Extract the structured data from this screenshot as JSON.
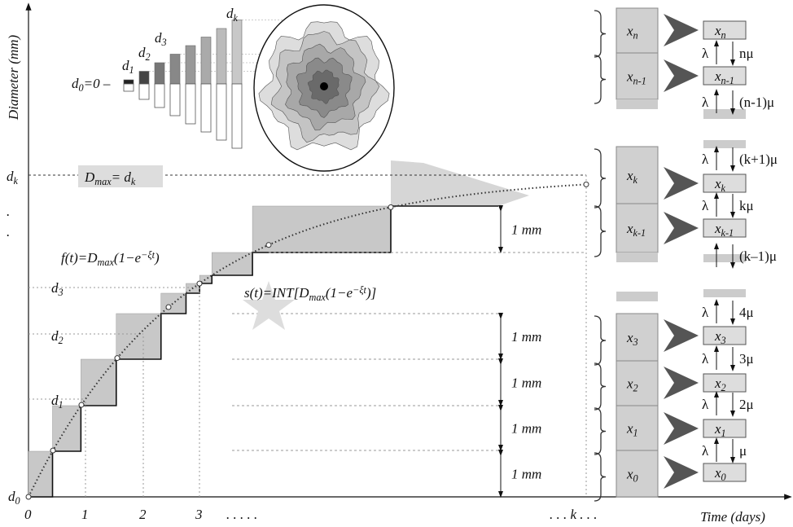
{
  "y_axis_label": "Diameter (mm)",
  "x_axis_label": "Time (days)",
  "x_ticks": [
    "0",
    "1",
    "2",
    "3",
    ". . . . .",
    ". . . k . . ."
  ],
  "y_ticks": [
    [
      {
        "text": "d"
      },
      {
        "sub": "0"
      }
    ],
    [
      {
        "text": "d"
      },
      {
        "sub": "1"
      }
    ],
    [
      {
        "text": "d"
      },
      {
        "sub": "2"
      }
    ],
    [
      {
        "text": "d"
      },
      {
        "sub": "3"
      }
    ],
    [
      {
        "text": "."
      }
    ],
    [
      {
        "text": "."
      }
    ],
    [
      {
        "text": "d"
      },
      {
        "sub": "k"
      }
    ]
  ],
  "dmax_label": [
    {
      "text": "D"
    },
    {
      "sub": "max"
    },
    {
      "text": "= d"
    },
    {
      "sub": "k"
    }
  ],
  "f_formula": [
    {
      "text": "f(t)=D"
    },
    {
      "sub": "max"
    },
    {
      "text": "(1−e"
    },
    {
      "sup": "−ξt"
    },
    {
      "text": ")"
    }
  ],
  "s_formula": [
    {
      "text": "s(t)=INT[D"
    },
    {
      "sub": "max"
    },
    {
      "text": "(1−e"
    },
    {
      "sup": "−ξt"
    },
    {
      "text": ")]"
    }
  ],
  "step_labels": [
    "1 mm",
    "1 mm",
    "1 mm",
    "1 mm",
    "1 mm"
  ],
  "inset": {
    "d0_label": [
      {
        "text": "d"
      },
      {
        "sub": "0"
      },
      {
        "text": "=0 –"
      }
    ],
    "bar_labels": [
      [
        {
          "text": "d"
        },
        {
          "sub": "1"
        }
      ],
      [
        {
          "text": "d"
        },
        {
          "sub": "2"
        }
      ],
      [
        {
          "text": "d"
        },
        {
          "sub": "3"
        }
      ],
      [
        {
          "text": "d"
        },
        {
          "sub": "k"
        }
      ]
    ]
  },
  "states": [
    [
      {
        "text": "x"
      },
      {
        "sub": "n"
      }
    ],
    [
      {
        "text": "x"
      },
      {
        "sub": "n-1"
      }
    ],
    [
      {
        "text": "x"
      },
      {
        "sub": "k"
      }
    ],
    [
      {
        "text": "x"
      },
      {
        "sub": "k-1"
      }
    ],
    [
      {
        "text": "x"
      },
      {
        "sub": "3"
      }
    ],
    [
      {
        "text": "x"
      },
      {
        "sub": "2"
      }
    ],
    [
      {
        "text": "x"
      },
      {
        "sub": "1"
      }
    ],
    [
      {
        "text": "x"
      },
      {
        "sub": "0"
      }
    ]
  ],
  "transitions": [
    {
      "up": "λ",
      "down": "nμ"
    },
    {
      "up": "λ",
      "down": "(n-1)μ"
    },
    {
      "up": "λ",
      "down": "(k+1)μ"
    },
    {
      "up": "λ",
      "down": "kμ"
    },
    {
      "down": "(k–1)μ"
    },
    {
      "up": "λ",
      "down": "4μ"
    },
    {
      "up": "λ",
      "down": "3μ"
    },
    {
      "up": "λ",
      "down": "2μ"
    },
    {
      "up": "λ",
      "down": "μ"
    }
  ]
}
